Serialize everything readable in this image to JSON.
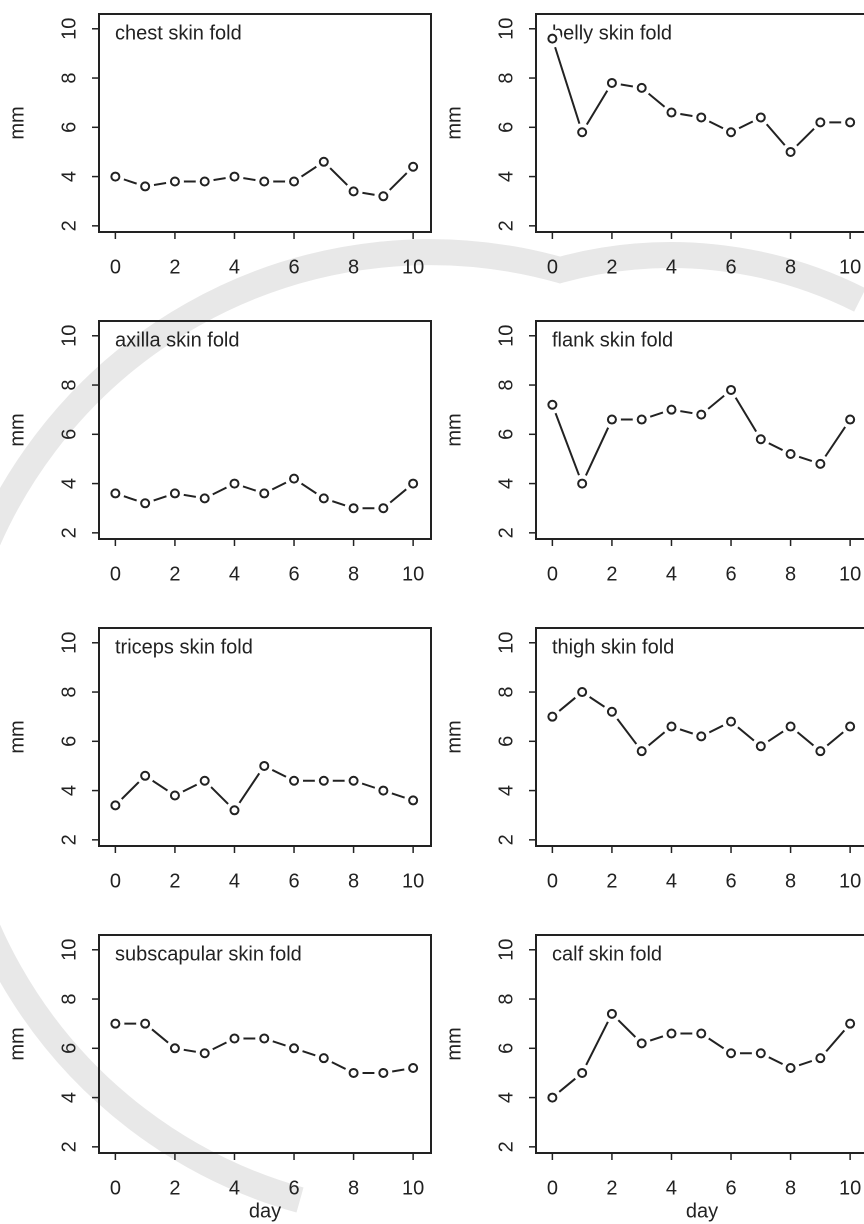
{
  "chart_data": [
    {
      "type": "line",
      "title": "chest skin fold",
      "ylabel": "mm",
      "x": [
        0,
        1,
        2,
        3,
        4,
        5,
        6,
        7,
        8,
        9,
        10
      ],
      "values": [
        4.0,
        3.6,
        3.8,
        3.8,
        4.0,
        3.8,
        3.8,
        4.6,
        3.4,
        3.2,
        4.4
      ],
      "color": "#222222",
      "xlim": [
        -0.55,
        10.6
      ],
      "ylim": [
        1.75,
        10.6
      ],
      "xticks": [
        0,
        2,
        4,
        6,
        8,
        10
      ],
      "yticks": [
        2,
        4,
        6,
        8,
        10
      ]
    },
    {
      "type": "line",
      "title": "belly skin fold",
      "ylabel": "mm",
      "x": [
        0,
        1,
        2,
        3,
        4,
        5,
        6,
        7,
        8,
        9,
        10
      ],
      "values": [
        9.6,
        5.8,
        7.8,
        7.6,
        6.6,
        6.4,
        5.8,
        6.4,
        5.0,
        6.2,
        6.2
      ],
      "color": "#222222",
      "xlim": [
        -0.55,
        10.6
      ],
      "ylim": [
        1.75,
        10.6
      ],
      "xticks": [
        0,
        2,
        4,
        6,
        8,
        10
      ],
      "yticks": [
        2,
        4,
        6,
        8,
        10
      ]
    },
    {
      "type": "line",
      "title": "axilla skin fold",
      "ylabel": "mm",
      "x": [
        0,
        1,
        2,
        3,
        4,
        5,
        6,
        7,
        8,
        9,
        10
      ],
      "values": [
        3.6,
        3.2,
        3.6,
        3.4,
        4.0,
        3.6,
        4.2,
        3.4,
        3.0,
        3.0,
        4.0
      ],
      "color": "#222222",
      "xlim": [
        -0.55,
        10.6
      ],
      "ylim": [
        1.75,
        10.6
      ],
      "xticks": [
        0,
        2,
        4,
        6,
        8,
        10
      ],
      "yticks": [
        2,
        4,
        6,
        8,
        10
      ]
    },
    {
      "type": "line",
      "title": "flank skin fold",
      "ylabel": "mm",
      "x": [
        0,
        1,
        2,
        3,
        4,
        5,
        6,
        7,
        8,
        9,
        10
      ],
      "values": [
        7.2,
        4.0,
        6.6,
        6.6,
        7.0,
        6.8,
        7.8,
        5.8,
        5.2,
        4.8,
        6.6
      ],
      "color": "#222222",
      "xlim": [
        -0.55,
        10.6
      ],
      "ylim": [
        1.75,
        10.6
      ],
      "xticks": [
        0,
        2,
        4,
        6,
        8,
        10
      ],
      "yticks": [
        2,
        4,
        6,
        8,
        10
      ]
    },
    {
      "type": "line",
      "title": "triceps skin fold",
      "ylabel": "mm",
      "x": [
        0,
        1,
        2,
        3,
        4,
        5,
        6,
        7,
        8,
        9,
        10
      ],
      "values": [
        3.4,
        4.6,
        3.8,
        4.4,
        3.2,
        5.0,
        4.4,
        4.4,
        4.4,
        4.0,
        3.6
      ],
      "color": "#222222",
      "xlim": [
        -0.55,
        10.6
      ],
      "ylim": [
        1.75,
        10.6
      ],
      "xticks": [
        0,
        2,
        4,
        6,
        8,
        10
      ],
      "yticks": [
        2,
        4,
        6,
        8,
        10
      ]
    },
    {
      "type": "line",
      "title": "thigh skin fold",
      "ylabel": "mm",
      "x": [
        0,
        1,
        2,
        3,
        4,
        5,
        6,
        7,
        8,
        9,
        10
      ],
      "values": [
        7.0,
        8.0,
        7.2,
        5.6,
        6.6,
        6.2,
        6.8,
        5.8,
        6.6,
        5.6,
        6.6
      ],
      "color": "#222222",
      "xlim": [
        -0.55,
        10.6
      ],
      "ylim": [
        1.75,
        10.6
      ],
      "xticks": [
        0,
        2,
        4,
        6,
        8,
        10
      ],
      "yticks": [
        2,
        4,
        6,
        8,
        10
      ]
    },
    {
      "type": "line",
      "title": "subscapular skin fold",
      "ylabel": "mm",
      "xlabel": "day",
      "x": [
        0,
        1,
        2,
        3,
        4,
        5,
        6,
        7,
        8,
        9,
        10
      ],
      "values": [
        7.0,
        7.0,
        6.0,
        5.8,
        6.4,
        6.4,
        6.0,
        5.6,
        5.0,
        5.0,
        5.2
      ],
      "color": "#222222",
      "xlim": [
        -0.55,
        10.6
      ],
      "ylim": [
        1.75,
        10.6
      ],
      "xticks": [
        0,
        2,
        4,
        6,
        8,
        10
      ],
      "yticks": [
        2,
        4,
        6,
        8,
        10
      ]
    },
    {
      "type": "line",
      "title": "calf skin fold",
      "ylabel": "mm",
      "xlabel": "day",
      "x": [
        0,
        1,
        2,
        3,
        4,
        5,
        6,
        7,
        8,
        9,
        10
      ],
      "values": [
        4.0,
        5.0,
        7.4,
        6.2,
        6.6,
        6.6,
        5.8,
        5.8,
        5.2,
        5.6,
        7.0
      ],
      "color": "#222222",
      "xlim": [
        -0.55,
        10.6
      ],
      "ylim": [
        1.75,
        10.6
      ],
      "xticks": [
        0,
        2,
        4,
        6,
        8,
        10
      ],
      "yticks": [
        2,
        4,
        6,
        8,
        10
      ]
    }
  ]
}
